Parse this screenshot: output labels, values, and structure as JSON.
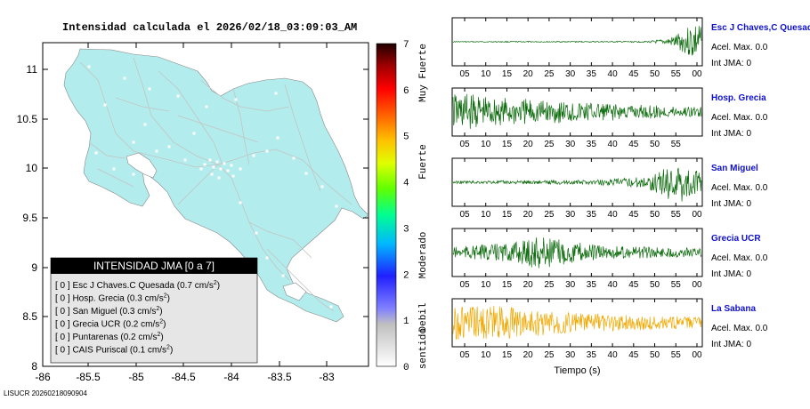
{
  "title": "Intensidad calculada el 2026/02/18_03:09:03_AM",
  "footer": "LISUCR 20260218090904",
  "map": {
    "lon_ticks": [
      "-86",
      "-85.5",
      "-85",
      "-84.5",
      "-84",
      "-83.5",
      "-83"
    ],
    "lat_ticks": [
      "11",
      "10.5",
      "10",
      "9.5",
      "9",
      "8.5",
      "8"
    ],
    "land_color": "#b2ecec",
    "road_color": "#c4c4c4"
  },
  "legend": {
    "title": "INTENSIDAD JMA [0 a 7]",
    "items": [
      {
        "level": "[ 0 ]",
        "name": "Esc J Chaves.C Quesada",
        "accel": "(0.7 cm/s",
        "unit_exp": "2",
        ")": ")"
      },
      {
        "level": "[ 0 ]",
        "name": "Hosp. Grecia",
        "accel": "(0.3 cm/s",
        "unit_exp": "2",
        ")": ")"
      },
      {
        "level": "[ 0 ]",
        "name": "San Miguel",
        "accel": "(0.3 cm/s",
        "unit_exp": "2",
        ")": ")"
      },
      {
        "level": "[ 0 ]",
        "name": "Grecia UCR",
        "accel": "(0.2 cm/s",
        "unit_exp": "2",
        ")": ")"
      },
      {
        "level": "[ 0 ]",
        "name": "Puntarenas",
        "accel": "(0.2 cm/s",
        "unit_exp": "2",
        ")": ")"
      },
      {
        "level": "[ 0 ]",
        "name": "CAIS Puriscal",
        "accel": "(0.1 cm/s",
        "unit_exp": "2",
        ")": ")"
      }
    ]
  },
  "colorbar": {
    "ticks": [
      "7",
      "6",
      "5",
      "4",
      "3",
      "2",
      "1",
      "0"
    ],
    "labels": [
      "Muy Fuerte",
      "Fuerte",
      "Moderado",
      "Debil",
      "No sentido"
    ]
  },
  "chart_data": [
    {
      "type": "line",
      "title": "Esc J Chaves,C Quesada",
      "accel_label": "Acel. Max. 0.0",
      "int_label": "Int JMA: 0",
      "x_ticks": [
        "05",
        "10",
        "15",
        "20",
        "25",
        "30",
        "35",
        "40",
        "45",
        "50",
        "55",
        "00"
      ],
      "color": "#0a6a0a",
      "amplitude_envelope": [
        [
          0,
          0.02
        ],
        [
          0.78,
          0.03
        ],
        [
          0.86,
          0.12
        ],
        [
          0.93,
          0.5
        ],
        [
          0.97,
          0.95
        ],
        [
          1,
          0.7
        ]
      ]
    },
    {
      "type": "line",
      "title": "Hosp. Grecia",
      "accel_label": "Acel. Max. 0.0",
      "int_label": "Int JMA: 0",
      "x_ticks": [
        "05",
        "10",
        "15",
        "20",
        "25",
        "30",
        "35",
        "40",
        "45",
        "50",
        "55"
      ],
      "color": "#0a6a0a",
      "amplitude_envelope": [
        [
          0,
          0.9
        ],
        [
          0.2,
          0.65
        ],
        [
          0.45,
          0.5
        ],
        [
          0.7,
          0.35
        ],
        [
          1,
          0.22
        ]
      ]
    },
    {
      "type": "line",
      "title": "San Miguel",
      "accel_label": "Acel. Max. 0.0",
      "int_label": "Int JMA: 0",
      "x_ticks": [
        "05",
        "10",
        "15",
        "20",
        "25",
        "30",
        "35",
        "40",
        "45",
        "50",
        "55",
        "00"
      ],
      "color": "#0a6a0a",
      "amplitude_envelope": [
        [
          0,
          0.06
        ],
        [
          0.55,
          0.1
        ],
        [
          0.78,
          0.25
        ],
        [
          0.85,
          0.7
        ],
        [
          0.92,
          0.95
        ],
        [
          1,
          0.4
        ]
      ]
    },
    {
      "type": "line",
      "title": "Grecia UCR",
      "accel_label": "Acel. Max. 0.0",
      "int_label": "Int JMA: 0",
      "x_ticks": [
        "05",
        "10",
        "15",
        "20",
        "25",
        "30",
        "35",
        "40",
        "45",
        "50",
        "55",
        "00"
      ],
      "color": "#0a6a0a",
      "amplitude_envelope": [
        [
          0,
          0.25
        ],
        [
          0.25,
          0.45
        ],
        [
          0.35,
          0.85
        ],
        [
          0.42,
          0.6
        ],
        [
          0.6,
          0.3
        ],
        [
          1,
          0.2
        ]
      ]
    },
    {
      "type": "line",
      "title": "La Sabana",
      "accel_label": "Acel. Max. 0.0",
      "int_label": "Int JMA: 0",
      "x_ticks": [
        "05",
        "10",
        "15",
        "20",
        "25",
        "30",
        "35",
        "40",
        "45",
        "50",
        "55",
        "00"
      ],
      "x_label": "Tiempo (s)",
      "color": "#f0a800",
      "amplitude_envelope": [
        [
          0,
          0.75
        ],
        [
          0.15,
          0.8
        ],
        [
          0.35,
          0.6
        ],
        [
          0.6,
          0.4
        ],
        [
          1,
          0.25
        ]
      ]
    }
  ]
}
